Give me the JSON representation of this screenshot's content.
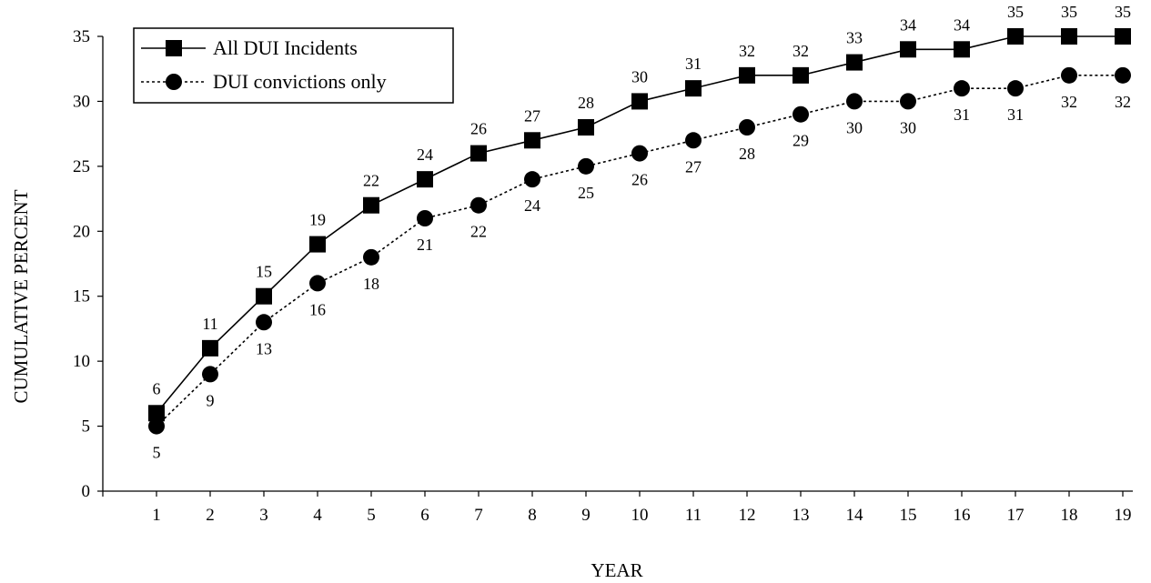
{
  "chart_data": {
    "type": "line",
    "title": "",
    "xlabel": "YEAR",
    "ylabel": "CUMULATIVE PERCENT",
    "x": [
      1,
      2,
      3,
      4,
      5,
      6,
      7,
      8,
      9,
      10,
      11,
      12,
      13,
      14,
      15,
      16,
      17,
      18,
      19
    ],
    "ylim": [
      0,
      35
    ],
    "yticks": [
      0,
      5,
      10,
      15,
      20,
      25,
      30,
      35
    ],
    "grid": false,
    "legend_position": "top-left",
    "series": [
      {
        "name": "All DUI Incidents",
        "marker": "square",
        "line_style": "solid",
        "labels_position": "above",
        "values": [
          6,
          11,
          15,
          19,
          22,
          24,
          26,
          27,
          28,
          30,
          31,
          32,
          32,
          33,
          34,
          34,
          35,
          35,
          35
        ]
      },
      {
        "name": "DUI convictions only",
        "marker": "circle",
        "line_style": "dashed",
        "labels_position": "below",
        "values": [
          5,
          9,
          13,
          16,
          18,
          21,
          22,
          24,
          25,
          26,
          27,
          28,
          29,
          30,
          30,
          31,
          31,
          32,
          32
        ]
      }
    ],
    "colors": {
      "line": "#000000",
      "background": "#ffffff"
    }
  }
}
